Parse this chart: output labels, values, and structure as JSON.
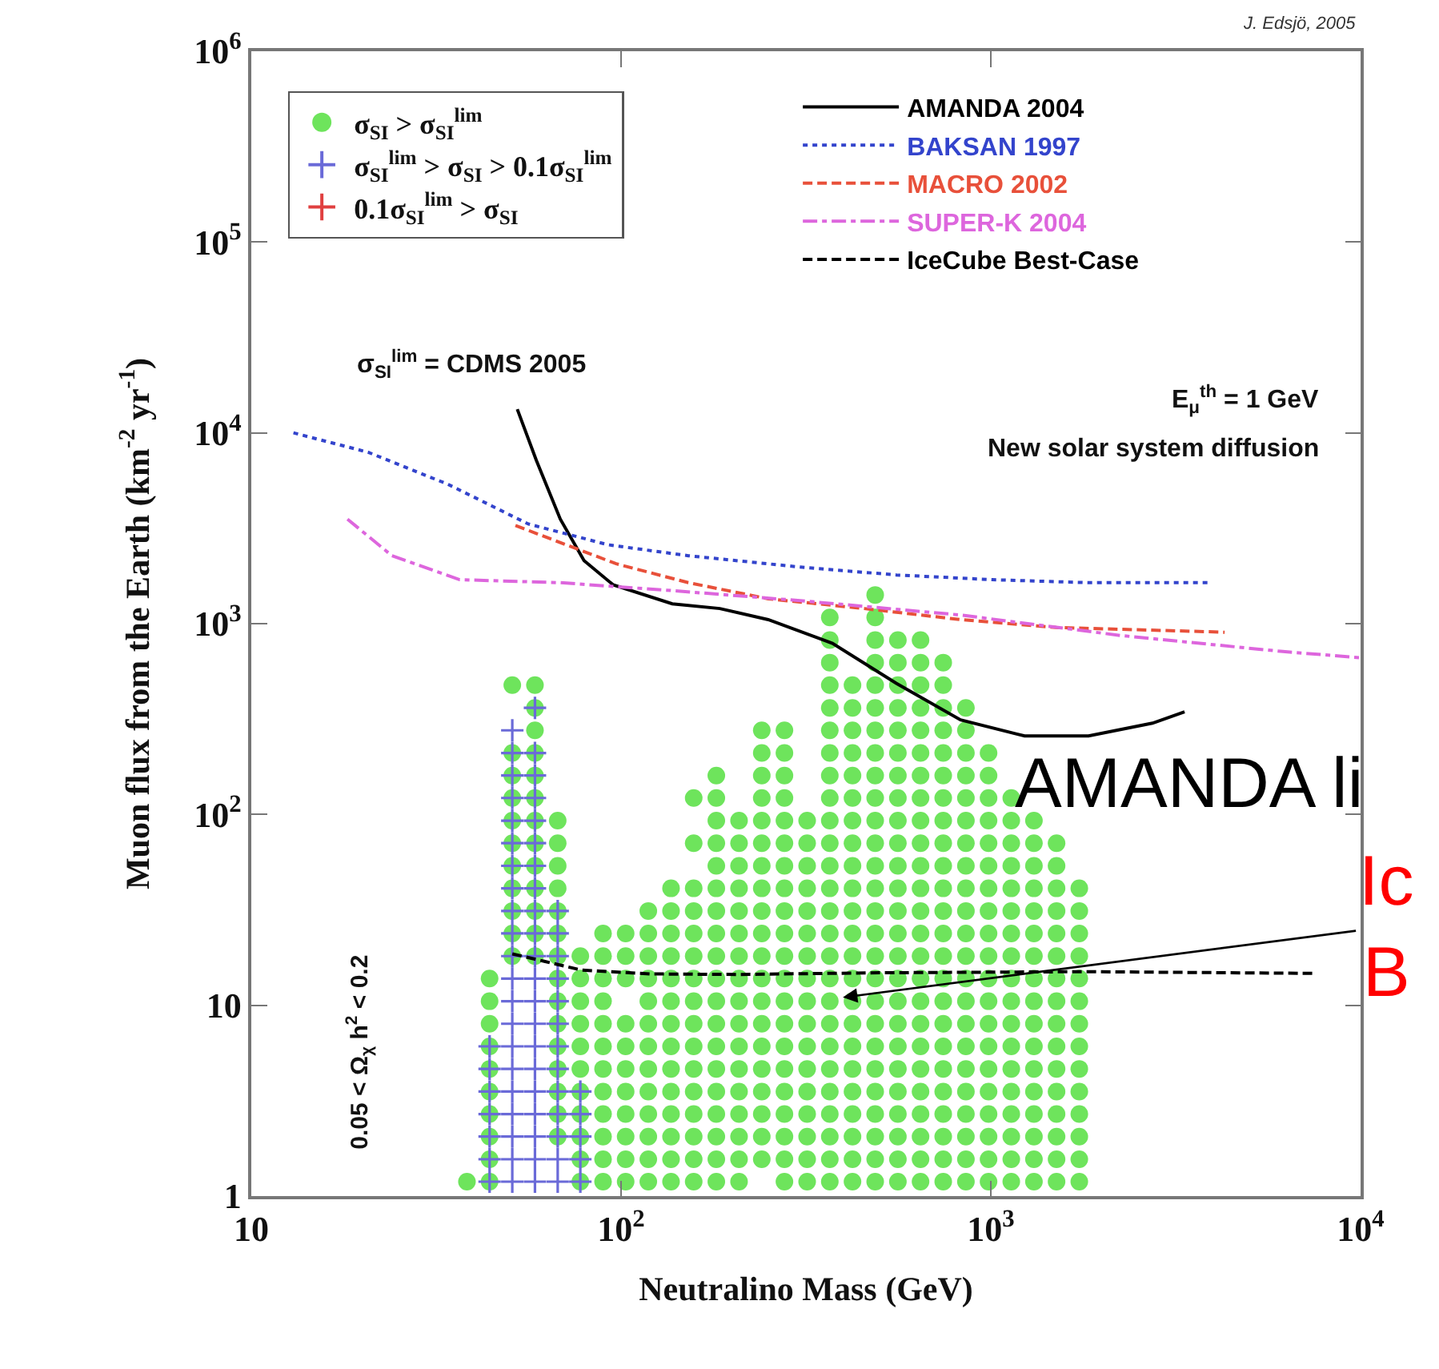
{
  "chart_data": {
    "type": "scatter",
    "xlabel": "Neutralino Mass (GeV)",
    "ylabel": "Muon flux from the Earth (km$^{-2}$ yr$^{-1}$)",
    "log": "xy",
    "grid": false,
    "legend": "top",
    "xlim": [
      10,
      10000
    ],
    "xticks": [
      10,
      {
        "value": 100,
        "label": "10$^{2}$"
      },
      {
        "value": 1000,
        "label": "10$^{3}$"
      },
      {
        "value": 10000,
        "label": "10$^{4}$"
      }
    ],
    "ylim": [
      1,
      1000000
    ],
    "yticks": [
      1,
      10,
      {
        "value": 100,
        "label": "10$^{2}$"
      },
      {
        "value": 1000,
        "label": "10$^{3}$"
      },
      {
        "value": 10000,
        "label": "10$^{4}$"
      },
      {
        "value": 100000,
        "label": "10$^{5}$"
      },
      {
        "value": 1000000,
        "label": "10$^{6}$"
      }
    ],
    "annotations": [
      "σ$_{SI}$$^{lim}$ = CDMS 2005",
      "J. Edsjö, 2005",
      "E$_{μ}$$^{th}$ = 1 GeV",
      "New solar system diffusion",
      "0.05 < Ω$_{χ}$ h$^{2}$ < 0.2",
      "AMANDA li",
      {
        "text": "Ic\nB",
        "x": 398,
        "y": 11
      }
    ],
    "series": [
      {
        "name": "σ$_{SI}$ > σ$_{SI}$$^{lim}$",
        "marker": "circle",
        "color": "#6ee45c",
        "x": [
          38.3,
          44.1,
          44.1,
          44.1,
          44.1,
          44.1,
          44.1,
          44.1,
          44.1,
          44.1,
          44.1,
          50.8,
          50.8,
          50.8,
          50.8,
          50.8,
          50.8,
          50.8,
          50.8,
          50.8,
          50.8,
          50.8,
          58.5,
          58.5,
          58.5,
          58.5,
          58.5,
          58.5,
          58.5,
          58.5,
          58.5,
          58.5,
          58.5,
          58.5,
          58.5,
          67.4,
          67.4,
          67.4,
          67.4,
          67.4,
          67.4,
          67.4,
          67.4,
          67.4,
          67.4,
          67.4,
          67.4,
          67.4,
          67.4,
          67.4,
          77.6,
          77.6,
          77.6,
          77.6,
          77.6,
          77.6,
          77.6,
          77.6,
          77.6,
          77.6,
          77.6,
          89.4,
          89.4,
          89.4,
          89.4,
          89.4,
          89.4,
          89.4,
          89.4,
          89.4,
          89.4,
          89.4,
          89.4,
          102.9,
          102.9,
          102.9,
          102.9,
          102.9,
          102.9,
          102.9,
          102.9,
          102.9,
          102.9,
          102.9,
          118.5,
          118.5,
          118.5,
          118.5,
          118.5,
          118.5,
          118.5,
          118.5,
          118.5,
          118.5,
          118.5,
          118.5,
          118.5,
          136.5,
          136.5,
          136.5,
          136.5,
          136.5,
          136.5,
          136.5,
          136.5,
          136.5,
          136.5,
          136.5,
          136.5,
          136.5,
          136.5,
          157.2,
          157.2,
          157.2,
          157.2,
          157.2,
          157.2,
          157.2,
          157.2,
          157.2,
          157.2,
          157.2,
          157.2,
          157.2,
          157.2,
          157.2,
          157.2,
          181,
          181,
          181,
          181,
          181,
          181,
          181,
          181,
          181,
          181,
          181,
          181,
          181,
          181,
          181,
          181,
          181,
          181,
          181,
          208.5,
          208.5,
          208.5,
          208.5,
          208.5,
          208.5,
          208.5,
          208.5,
          208.5,
          208.5,
          208.5,
          208.5,
          208.5,
          208.5,
          208.5,
          208.5,
          208.5,
          240.2,
          240.2,
          240.2,
          240.2,
          240.2,
          240.2,
          240.2,
          240.2,
          240.2,
          240.2,
          240.2,
          240.2,
          240.2,
          240.2,
          240.2,
          240.2,
          240.2,
          240.2,
          240.2,
          240.2,
          276.6,
          276.6,
          276.6,
          276.6,
          276.6,
          276.6,
          276.6,
          276.6,
          276.6,
          276.6,
          276.6,
          276.6,
          276.6,
          276.6,
          276.6,
          276.6,
          276.6,
          276.6,
          276.6,
          276.6,
          276.6,
          318.6,
          318.6,
          318.6,
          318.6,
          318.6,
          318.6,
          318.6,
          318.6,
          318.6,
          318.6,
          318.6,
          318.6,
          318.6,
          318.6,
          318.6,
          318.6,
          318.6,
          366.9,
          366.9,
          366.9,
          366.9,
          366.9,
          366.9,
          366.9,
          366.9,
          366.9,
          366.9,
          366.9,
          366.9,
          366.9,
          366.9,
          366.9,
          366.9,
          366.9,
          366.9,
          366.9,
          366.9,
          366.9,
          366.9,
          366.9,
          366.9,
          366.9,
          366.9,
          422.6,
          422.6,
          422.6,
          422.6,
          422.6,
          422.6,
          422.6,
          422.6,
          422.6,
          422.6,
          422.6,
          422.6,
          422.6,
          422.6,
          422.6,
          422.6,
          422.6,
          422.6,
          422.6,
          422.6,
          422.6,
          422.6,
          422.6,
          486.7,
          486.7,
          486.7,
          486.7,
          486.7,
          486.7,
          486.7,
          486.7,
          486.7,
          486.7,
          486.7,
          486.7,
          486.7,
          486.7,
          486.7,
          486.7,
          486.7,
          486.7,
          486.7,
          486.7,
          486.7,
          486.7,
          486.7,
          486.7,
          486.7,
          486.7,
          486.7,
          560.6,
          560.6,
          560.6,
          560.6,
          560.6,
          560.6,
          560.6,
          560.6,
          560.6,
          560.6,
          560.6,
          560.6,
          560.6,
          560.6,
          560.6,
          560.6,
          560.6,
          560.6,
          560.6,
          560.6,
          560.6,
          560.6,
          560.6,
          560.6,
          560.6,
          645.6,
          645.6,
          645.6,
          645.6,
          645.6,
          645.6,
          645.6,
          645.6,
          645.6,
          645.6,
          645.6,
          645.6,
          645.6,
          645.6,
          645.6,
          645.6,
          645.6,
          645.6,
          645.6,
          645.6,
          645.6,
          645.6,
          645.6,
          645.6,
          645.6,
          743.5,
          743.5,
          743.5,
          743.5,
          743.5,
          743.5,
          743.5,
          743.5,
          743.5,
          743.5,
          743.5,
          743.5,
          743.5,
          743.5,
          743.5,
          743.5,
          743.5,
          743.5,
          743.5,
          743.5,
          743.5,
          743.5,
          743.5,
          743.5,
          856.3,
          856.3,
          856.3,
          856.3,
          856.3,
          856.3,
          856.3,
          856.3,
          856.3,
          856.3,
          856.3,
          856.3,
          856.3,
          856.3,
          856.3,
          856.3,
          856.3,
          856.3,
          856.3,
          856.3,
          856.3,
          856.3,
          986,
          986,
          986,
          986,
          986,
          986,
          986,
          986,
          986,
          986,
          986,
          986,
          986,
          986,
          986,
          986,
          986,
          986,
          986,
          986,
          1136,
          1136,
          1136,
          1136,
          1136,
          1136,
          1136,
          1136,
          1136,
          1136,
          1136,
          1136,
          1136,
          1136,
          1136,
          1136,
          1136,
          1136,
          1308,
          1308,
          1308,
          1308,
          1308,
          1308,
          1308,
          1308,
          1308,
          1308,
          1308,
          1308,
          1308,
          1308,
          1308,
          1308,
          1308,
          1506,
          1506,
          1506,
          1506,
          1506,
          1506,
          1506,
          1506,
          1506,
          1506,
          1506,
          1506,
          1506,
          1506,
          1506,
          1506,
          1735,
          1735,
          1735,
          1735,
          1735,
          1735,
          1735,
          1735,
          1735,
          1735,
          1735,
          1735,
          1735,
          1735
        ],
        "values": [
          1.19,
          1.19,
          1.56,
          2.05,
          2.69,
          3.53,
          4.64,
          6.09,
          8,
          10.5,
          13.8,
          18.1,
          23.8,
          31.2,
          41,
          53.8,
          70.7,
          92.8,
          122,
          160,
          210,
          476,
          18.1,
          23.8,
          31.2,
          41,
          53.8,
          70.7,
          92.8,
          122,
          160,
          210,
          276,
          362,
          476,
          2.05,
          2.69,
          3.53,
          4.64,
          6.09,
          8,
          10.5,
          13.8,
          18.1,
          23.8,
          31.2,
          41,
          53.8,
          70.7,
          92.8,
          1.19,
          1.56,
          2.05,
          2.69,
          3.53,
          4.64,
          6.09,
          8,
          10.5,
          13.8,
          18.1,
          1.19,
          1.56,
          2.05,
          2.69,
          3.53,
          4.64,
          6.09,
          8,
          10.5,
          13.8,
          18.1,
          23.8,
          1.19,
          1.56,
          2.05,
          2.69,
          3.53,
          4.64,
          6.09,
          8,
          13.8,
          18.1,
          23.8,
          1.19,
          1.56,
          2.05,
          2.69,
          3.53,
          4.64,
          6.09,
          8,
          10.5,
          13.8,
          18.1,
          23.8,
          31.2,
          1.19,
          1.56,
          2.05,
          2.69,
          3.53,
          4.64,
          6.09,
          8,
          10.5,
          13.8,
          18.1,
          23.8,
          31.2,
          41,
          1.19,
          1.56,
          2.05,
          2.69,
          3.53,
          4.64,
          6.09,
          8,
          10.5,
          13.8,
          18.1,
          23.8,
          31.2,
          41,
          70.7,
          122,
          1.19,
          1.56,
          2.05,
          2.69,
          3.53,
          4.64,
          6.09,
          8,
          10.5,
          13.8,
          18.1,
          23.8,
          31.2,
          41,
          53.8,
          70.7,
          92.8,
          122,
          160,
          1.19,
          1.56,
          2.05,
          2.69,
          3.53,
          4.64,
          6.09,
          8,
          10.5,
          13.8,
          18.1,
          23.8,
          31.2,
          41,
          53.8,
          70.7,
          92.8,
          1.56,
          2.05,
          2.69,
          3.53,
          4.64,
          6.09,
          8,
          10.5,
          13.8,
          18.1,
          23.8,
          31.2,
          41,
          53.8,
          70.7,
          92.8,
          122,
          160,
          210,
          276,
          1.19,
          1.56,
          2.05,
          2.69,
          3.53,
          4.64,
          6.09,
          8,
          10.5,
          13.8,
          18.1,
          23.8,
          31.2,
          41,
          53.8,
          70.7,
          92.8,
          122,
          160,
          210,
          276,
          1.19,
          1.56,
          2.05,
          2.69,
          3.53,
          4.64,
          6.09,
          8,
          10.5,
          13.8,
          18.1,
          23.8,
          31.2,
          41,
          53.8,
          70.7,
          92.8,
          1.19,
          1.56,
          2.05,
          2.69,
          3.53,
          4.64,
          6.09,
          8,
          10.5,
          13.8,
          18.1,
          23.8,
          31.2,
          41,
          53.8,
          70.7,
          92.8,
          122,
          160,
          210,
          276,
          362,
          476,
          625,
          820,
          1077,
          1.19,
          1.56,
          2.05,
          2.69,
          3.53,
          4.64,
          6.09,
          8,
          10.5,
          13.8,
          18.1,
          23.8,
          31.2,
          41,
          53.8,
          70.7,
          92.8,
          122,
          160,
          210,
          276,
          362,
          476,
          1.19,
          1.56,
          2.05,
          2.69,
          3.53,
          4.64,
          6.09,
          8,
          10.5,
          13.8,
          18.1,
          23.8,
          31.2,
          41,
          53.8,
          70.7,
          92.8,
          122,
          160,
          210,
          276,
          362,
          476,
          625,
          820,
          1077,
          1414,
          1.19,
          1.56,
          2.05,
          2.69,
          3.53,
          4.64,
          6.09,
          8,
          10.5,
          13.8,
          18.1,
          23.8,
          31.2,
          41,
          53.8,
          70.7,
          92.8,
          122,
          160,
          210,
          276,
          362,
          476,
          625,
          820,
          1.19,
          1.56,
          2.05,
          2.69,
          3.53,
          4.64,
          6.09,
          8,
          10.5,
          13.8,
          18.1,
          23.8,
          31.2,
          41,
          53.8,
          70.7,
          92.8,
          122,
          160,
          210,
          276,
          362,
          476,
          625,
          820,
          1.19,
          1.56,
          2.05,
          2.69,
          3.53,
          4.64,
          6.09,
          8,
          10.5,
          13.8,
          18.1,
          23.8,
          31.2,
          41,
          53.8,
          70.7,
          92.8,
          122,
          160,
          210,
          276,
          362,
          476,
          625,
          1.19,
          1.56,
          2.05,
          2.69,
          3.53,
          4.64,
          6.09,
          8,
          10.5,
          13.8,
          18.1,
          23.8,
          31.2,
          41,
          53.8,
          70.7,
          92.8,
          122,
          160,
          210,
          276,
          362,
          1.19,
          1.56,
          2.05,
          2.69,
          3.53,
          4.64,
          6.09,
          8,
          10.5,
          13.8,
          18.1,
          23.8,
          31.2,
          41,
          53.8,
          70.7,
          92.8,
          122,
          160,
          210,
          1.19,
          1.56,
          2.05,
          2.69,
          3.53,
          4.64,
          6.09,
          8,
          10.5,
          13.8,
          18.1,
          23.8,
          31.2,
          41,
          53.8,
          70.7,
          92.8,
          122,
          1.19,
          1.56,
          2.05,
          2.69,
          3.53,
          4.64,
          6.09,
          8,
          10.5,
          13.8,
          18.1,
          23.8,
          31.2,
          41,
          53.8,
          70.7,
          92.8,
          1.19,
          1.56,
          2.05,
          2.69,
          3.53,
          4.64,
          6.09,
          8,
          10.5,
          13.8,
          18.1,
          23.8,
          31.2,
          41,
          53.8,
          70.7,
          1.19,
          1.56,
          2.05,
          2.69,
          3.53,
          4.64,
          6.09,
          8,
          10.5,
          13.8,
          18.1,
          23.8,
          31.2,
          41
        ]
      },
      {
        "name": "σ$_{SI}$$^{lim}$ > σ$_{SI}$ > 0.1σ$_{SI}$$^{lim}$",
        "marker": "cross",
        "color": "#6a6ad8",
        "x": [
          44.1,
          44.1,
          44.1,
          44.1,
          44.1,
          44.1,
          44.1,
          50.8,
          50.8,
          50.8,
          50.8,
          50.8,
          50.8,
          50.8,
          50.8,
          50.8,
          50.8,
          50.8,
          50.8,
          50.8,
          50.8,
          50.8,
          50.8,
          50.8,
          50.8,
          50.8,
          50.8,
          50.8,
          58.5,
          58.5,
          58.5,
          58.5,
          58.5,
          58.5,
          58.5,
          58.5,
          58.5,
          58.5,
          58.5,
          58.5,
          58.5,
          58.5,
          58.5,
          58.5,
          58.5,
          58.5,
          58.5,
          58.5,
          58.5,
          67.4,
          67.4,
          67.4,
          67.4,
          67.4,
          67.4,
          67.4,
          67.4,
          67.4,
          67.4,
          67.4,
          67.4,
          67.4,
          77.6,
          77.6,
          77.6,
          77.6,
          77.6
        ],
        "values": [
          1.19,
          1.56,
          2.05,
          2.69,
          3.53,
          4.64,
          6.09,
          1.19,
          1.56,
          2.05,
          2.69,
          3.53,
          4.64,
          6.09,
          8,
          10.5,
          13.8,
          18.1,
          23.8,
          31.2,
          41,
          53.8,
          70.7,
          92.8,
          122,
          160,
          210,
          276,
          1.19,
          1.56,
          2.05,
          2.69,
          3.53,
          4.64,
          6.09,
          8,
          10.5,
          13.8,
          18.1,
          23.8,
          31.2,
          41,
          53.8,
          70.7,
          92.8,
          122,
          160,
          210,
          362,
          1.19,
          1.56,
          2.05,
          2.69,
          3.53,
          4.64,
          6.09,
          8,
          10.5,
          13.8,
          18.1,
          23.8,
          31.2,
          1.19,
          1.56,
          2.05,
          2.69,
          3.53
        ]
      },
      {
        "name": "0.1σ$_{SI}$$^{lim}$ > σ$_{SI}$",
        "marker": "cross",
        "color": "#e04040"
      },
      {
        "name": "AMANDA 2004",
        "type": "line",
        "line_style": "solid",
        "color": "#000000",
        "x": [
          52.4,
          59,
          68.5,
          79.4,
          95.1,
          137.6,
          185,
          250,
          373,
          555,
          828,
          1234,
          1838,
          2737,
          3342
        ],
        "values": [
          13300,
          7180,
          3530,
          2140,
          1600,
          1270,
          1200,
          1050,
          788,
          487,
          313,
          258,
          258,
          301,
          345
        ]
      },
      {
        "name": "BAKSAN 1997",
        "type": "line",
        "line_style": "dotted",
        "color": "#3344cc",
        "x": [
          13,
          20.7,
          34,
          56.1,
          92.3,
          152,
          305,
          555,
          1009,
          1838,
          3880
        ],
        "values": [
          10000,
          7910,
          5380,
          3330,
          2590,
          2270,
          1980,
          1800,
          1700,
          1640,
          1640
        ]
      },
      {
        "name": "MACRO 2002",
        "type": "line",
        "line_style": "dashed",
        "color": "#e8503a",
        "x": [
          51.8,
          97,
          152,
          250,
          455,
          828,
          1503,
          4290
        ],
        "values": [
          3270,
          2060,
          1640,
          1350,
          1200,
          1050,
          955,
          902
        ]
      },
      {
        "name": "SUPER-K 2004",
        "type": "line",
        "line_style": "dashdot",
        "color": "#dd66dd",
        "x": [
          18.2,
          24,
          36.6,
          68.5,
          137.6,
          305,
          828,
          2244,
          6080,
          10000
        ],
        "values": [
          3530,
          2270,
          1700,
          1640,
          1490,
          1320,
          1110,
          867,
          716,
          663
        ]
      },
      {
        "name": "IceCube Best-Case",
        "type": "line",
        "line_style": "dashed",
        "color": "#000000",
        "x": [
          50.8,
          62,
          78,
          120,
          205,
          500,
          1780,
          7400
        ],
        "values": [
          18.6,
          17,
          15.3,
          14.6,
          14.5,
          14.8,
          15,
          14.7
        ]
      }
    ]
  }
}
